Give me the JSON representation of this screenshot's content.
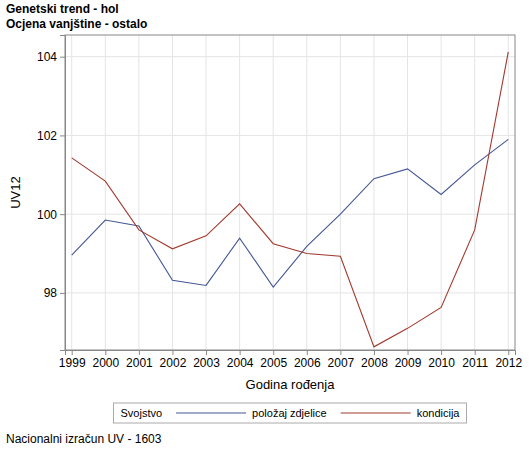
{
  "chart_data": {
    "type": "line",
    "title": "Genetski trend - hol",
    "subtitle": "Ocjena vanjštine - ostalo",
    "x_label": "Godina rođenja",
    "y_label": "UV12",
    "legend_title": "Svojstvo",
    "footnote": "Nacionalni izračun UV - 1603",
    "x": [
      1999,
      2000,
      2001,
      2002,
      2003,
      2004,
      2005,
      2006,
      2007,
      2008,
      2009,
      2010,
      2011,
      2012
    ],
    "series": [
      {
        "name": "položaj zdjelice",
        "color": "#445694",
        "values": [
          98.96,
          99.85,
          99.7,
          98.32,
          98.19,
          99.39,
          98.15,
          99.18,
          100.0,
          100.9,
          101.15,
          100.5,
          101.25,
          101.9
        ]
      },
      {
        "name": "kondicija",
        "color": "#a23a2e",
        "values": [
          101.43,
          100.84,
          99.6,
          99.12,
          99.45,
          100.26,
          99.25,
          99.0,
          98.93,
          96.63,
          97.1,
          97.63,
          99.6,
          104.12
        ]
      }
    ],
    "xlim": [
      1998.8,
      2012.2
    ],
    "xticks": [
      1999,
      2000,
      2001,
      2002,
      2003,
      2004,
      2005,
      2006,
      2007,
      2008,
      2009,
      2010,
      2011,
      2012
    ],
    "ylim": [
      96.55,
      104.55
    ],
    "yticks": [
      98,
      100,
      102,
      104
    ],
    "grid": true,
    "legend": "bottom"
  }
}
